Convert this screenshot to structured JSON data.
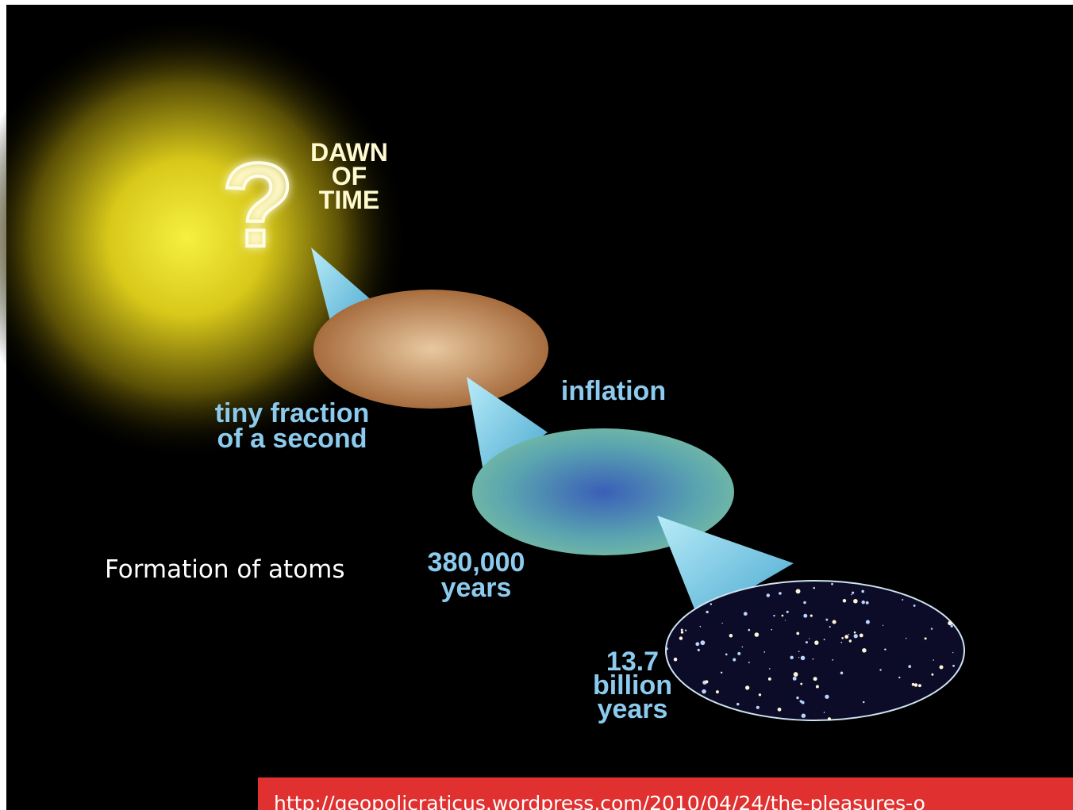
{
  "slide": {
    "dawn_label": [
      "DAWN",
      "OF",
      "TIME"
    ],
    "stage_labels": [
      {
        "lines": [
          "tiny fraction",
          "of a second"
        ]
      },
      {
        "lines": [
          "inflation"
        ]
      },
      {
        "lines": [
          "380,000",
          "years"
        ]
      },
      {
        "lines": [
          "13.7",
          "billion",
          "years"
        ]
      }
    ],
    "caption": "Formation of atoms",
    "source_url": "http://geopolicraticus.wordpress.com/2010/04/24/the-pleasures-o"
  }
}
